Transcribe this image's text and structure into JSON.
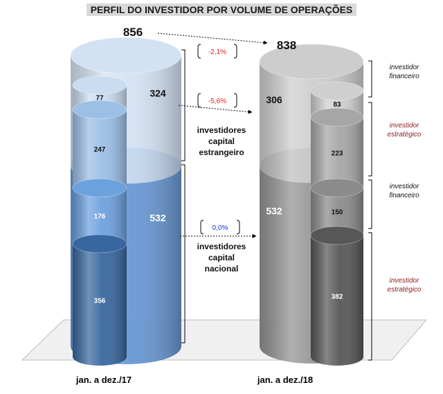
{
  "title": "PERFIL DO INVESTIDOR POR VOLUME DE OPERAÇÕES",
  "chart_data": {
    "type": "bar",
    "title": "PERFIL DO INVESTIDOR POR VOLUME DE OPERAÇÕES",
    "categories": [
      "jan. a dez./17",
      "jan. a dez./18"
    ],
    "totals": [
      856,
      838
    ],
    "groups": [
      {
        "name": "investidores capital estrangeiro",
        "values": [
          324,
          306
        ]
      },
      {
        "name": "investidores capital nacional",
        "values": [
          532,
          532
        ]
      }
    ],
    "series": [
      {
        "name": "investidor estratégico",
        "group": "investidores capital nacional",
        "values": [
          356,
          382
        ]
      },
      {
        "name": "investidor financeiro",
        "group": "investidores capital nacional",
        "values": [
          176,
          150
        ]
      },
      {
        "name": "investidor estratégico",
        "group": "investidores capital estrangeiro",
        "values": [
          247,
          223
        ]
      },
      {
        "name": "investidor financeiro",
        "group": "investidores capital estrangeiro",
        "values": [
          77,
          83
        ]
      }
    ],
    "changes": {
      "total": "-2,1%",
      "estrangeiro": "-5,6%",
      "nacional": "0,0%"
    },
    "group_labels": {
      "estrangeiro": [
        "investidores",
        "capital",
        "estrangeiro"
      ],
      "nacional": [
        "investidores",
        "capital",
        "nacional"
      ]
    },
    "legend": [
      [
        "investidor",
        "financeiro"
      ],
      [
        "investidor",
        "estratégico"
      ],
      [
        "investidor",
        "financeiro"
      ],
      [
        "investidor",
        "estratégico"
      ]
    ],
    "colors": {
      "y17_outer_top": "#cfdff2",
      "y17_outer_bottom": "#5a8fd0",
      "y17_inner": [
        "#38679f",
        "#6da1de",
        "#9cbfe6",
        "#cadcf0"
      ],
      "y18_outer_top": "#c8c8c8",
      "y18_outer_bottom": "#8a8a8a",
      "y18_inner": [
        "#575757",
        "#8b8b8b",
        "#a6a6a6",
        "#cfcfcf"
      ],
      "neg": "#e01b1b",
      "zero": "#1a2ce0",
      "legend_strat": "#8b1a1a",
      "legend_fin": "#111111"
    }
  }
}
